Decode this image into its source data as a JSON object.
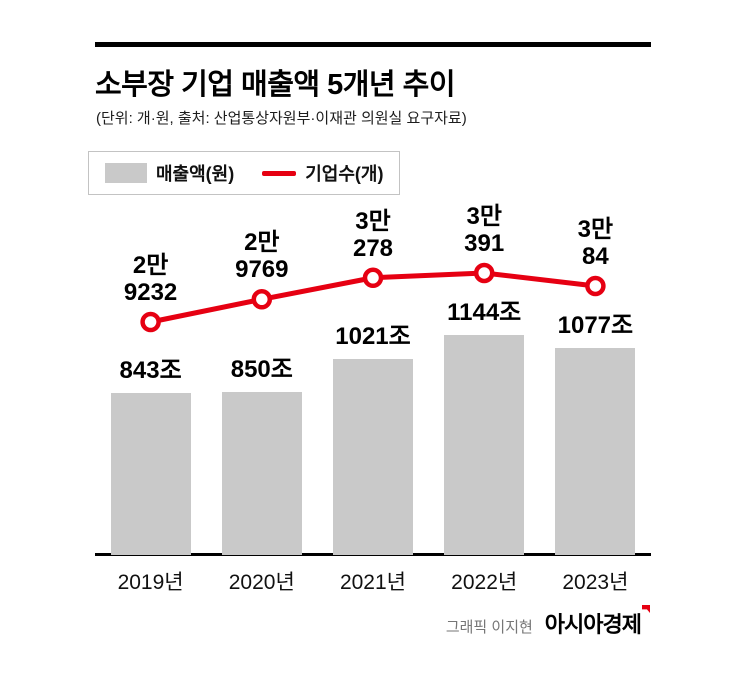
{
  "header": {
    "title": "소부장 기업 매출액 5개년 추이",
    "subtitle": "(단위: 개·원, 출처: 산업통상자원부·이재관 의원실 요구자료)"
  },
  "legend": {
    "items": [
      {
        "label": "매출액(원)",
        "swatch": "bar",
        "color": "#c9c9c9"
      },
      {
        "label": "기업수(개)",
        "swatch": "line",
        "color": "#e60012"
      }
    ]
  },
  "chart_data": {
    "type": "bar",
    "title": "소부장 기업 매출액 5개년 추이",
    "subtitle": "(단위: 개·원, 출처: 산업통상자원부·이재관 의원실 요구자료)",
    "categories": [
      "2019년",
      "2020년",
      "2021년",
      "2022년",
      "2023년"
    ],
    "series": [
      {
        "name": "매출액(원)",
        "type": "bar",
        "unit": "조",
        "values": [
          843,
          850,
          1021,
          1144,
          1077
        ],
        "labels": [
          "843조",
          "850조",
          "1021조",
          "1144조",
          "1077조"
        ],
        "color": "#c9c9c9"
      },
      {
        "name": "기업수(개)",
        "type": "line",
        "unit": "개",
        "values": [
          29232,
          29769,
          30278,
          30391,
          30084
        ],
        "labels": [
          "2만\n9232",
          "2만\n9769",
          "3만\n278",
          "3만\n391",
          "3만\n84"
        ],
        "color": "#e60012"
      }
    ],
    "legend_position": "top-left",
    "grid": false
  },
  "footer": {
    "credit": "그래픽 이지현",
    "brand": "아시아경제"
  },
  "colors": {
    "bar": "#c9c9c9",
    "line": "#e60012",
    "text": "#000000",
    "rule": "#000000"
  }
}
